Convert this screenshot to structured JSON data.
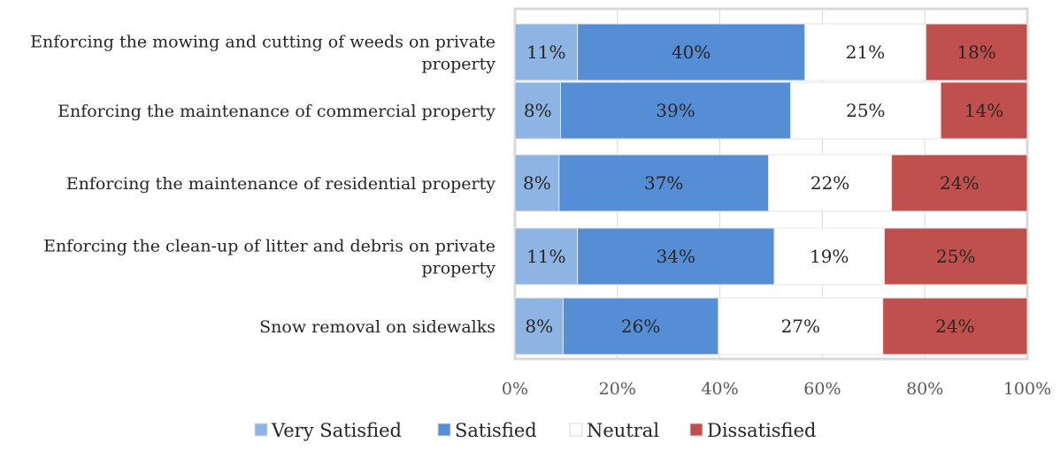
{
  "chart_data": {
    "type": "bar",
    "orientation": "horizontal",
    "stacked": true,
    "categories": [
      [
        "Enforcing the mowing and cutting of weeds on private",
        "property"
      ],
      [
        "Enforcing the maintenance of commercial property"
      ],
      [
        "Enforcing the maintenance of residential property"
      ],
      [
        "Enforcing the clean-up of litter and debris on private",
        "property"
      ],
      [
        "Snow removal on sidewalks"
      ]
    ],
    "series": [
      {
        "name": "Very Satisfied",
        "color": "#8eb4e3",
        "values": [
          11,
          8,
          8,
          11,
          8
        ]
      },
      {
        "name": "Satisfied",
        "color": "#558ed5",
        "values": [
          40,
          39,
          37,
          34,
          26
        ]
      },
      {
        "name": "Neutral",
        "color": "#ffffff",
        "values": [
          21,
          25,
          22,
          19,
          27
        ]
      },
      {
        "name": "Dissatisfied",
        "color": "#c0504d",
        "values": [
          18,
          14,
          24,
          25,
          24
        ]
      }
    ],
    "bar_extents": [
      [
        12.2,
        44.4,
        23.6,
        19.8
      ],
      [
        8.9,
        44.9,
        29.3,
        16.9
      ],
      [
        8.6,
        40.9,
        24.0,
        26.5
      ],
      [
        12.2,
        38.4,
        21.5,
        27.9
      ],
      [
        9.4,
        30.3,
        32.1,
        28.2
      ]
    ],
    "x_ticks": [
      "0%",
      "20%",
      "40%",
      "60%",
      "80%",
      "100%"
    ],
    "xlim": [
      0,
      100
    ],
    "grid": true,
    "legend_position": "bottom",
    "plot_border_color": "#d9d9d9"
  }
}
